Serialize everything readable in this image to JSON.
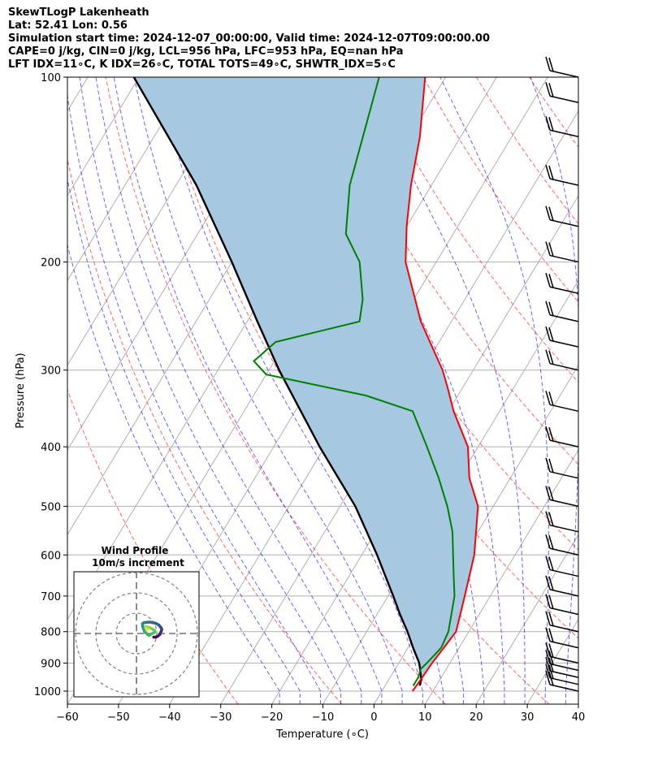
{
  "header": {
    "line1": "SkewTLogP Lakenheath",
    "line2": "Lat: 52.41   Lon: 0.56",
    "line3": "Simulation start time: 2024-12-07_00:00:00, Valid time: 2024-12-07T09:00:00.00",
    "line4": "CAPE=0 j/kg, CIN=0 j/kg, LCL=956 hPa, LFC=953 hPa, EQ=nan hPa",
    "line5": "LFT IDX=11∘C, K IDX=26∘C, TOTAL TOTS=49∘C, SHWTR_IDX=5∘C"
  },
  "chart_data": {
    "type": "skewt",
    "xlabel": "Temperature (∘C)",
    "ylabel": "Pressure (hPa)",
    "xlim": [
      -60,
      40
    ],
    "ylim": [
      1050,
      100
    ],
    "x_ticks": [
      -60,
      -50,
      -40,
      -30,
      -20,
      -10,
      0,
      10,
      20,
      30,
      40
    ],
    "x_tick_labels": [
      "−60",
      "−50",
      "−40",
      "−30",
      "−20",
      "−10",
      "0",
      "10",
      "20",
      "30",
      "40"
    ],
    "y_ticks": [
      1000,
      900,
      800,
      700,
      600,
      500,
      400,
      300,
      200,
      100
    ],
    "temperature": {
      "color": "#ff0000",
      "points": [
        [
          1000,
          6
        ],
        [
          950,
          6.3
        ],
        [
          900,
          6.5
        ],
        [
          850,
          7
        ],
        [
          800,
          7.5
        ],
        [
          700,
          5
        ],
        [
          600,
          2
        ],
        [
          500,
          -3
        ],
        [
          450,
          -8
        ],
        [
          400,
          -12
        ],
        [
          350,
          -19
        ],
        [
          320,
          -23
        ],
        [
          300,
          -26
        ],
        [
          250,
          -36
        ],
        [
          200,
          -46
        ],
        [
          175,
          -50
        ],
        [
          150,
          -54
        ],
        [
          125,
          -58
        ],
        [
          100,
          -64
        ]
      ]
    },
    "dewpoint": {
      "color": "#008000",
      "points": [
        [
          980,
          5.5
        ],
        [
          950,
          5.5
        ],
        [
          920,
          5
        ],
        [
          900,
          5.5
        ],
        [
          850,
          6.5
        ],
        [
          800,
          6
        ],
        [
          700,
          3
        ],
        [
          650,
          0.5
        ],
        [
          550,
          -5
        ],
        [
          500,
          -9
        ],
        [
          450,
          -14
        ],
        [
          400,
          -20
        ],
        [
          350,
          -27
        ],
        [
          330,
          -38
        ],
        [
          305,
          -60
        ],
        [
          290,
          -64
        ],
        [
          270,
          -62
        ],
        [
          250,
          -48
        ],
        [
          230,
          -50
        ],
        [
          200,
          -55
        ],
        [
          180,
          -61
        ],
        [
          150,
          -66
        ],
        [
          100,
          -73
        ]
      ]
    },
    "parcel": {
      "color": "#000000",
      "points": [
        [
          980,
          6.8
        ],
        [
          956,
          6.3
        ],
        [
          900,
          4
        ],
        [
          850,
          1
        ],
        [
          800,
          -2
        ],
        [
          750,
          -5.5
        ],
        [
          700,
          -9
        ],
        [
          600,
          -17
        ],
        [
          500,
          -27
        ],
        [
          400,
          -41
        ],
        [
          300,
          -58
        ],
        [
          250,
          -68
        ],
        [
          200,
          -80
        ],
        [
          150,
          -96
        ],
        [
          100,
          -121
        ]
      ]
    },
    "cape_shading_color": "#a6c8e0",
    "wind_barbs_pressures": [
      1000,
      975,
      950,
      925,
      900,
      850,
      800,
      750,
      700,
      650,
      600,
      550,
      500,
      450,
      400,
      350,
      300,
      275,
      250,
      225,
      200,
      175,
      150,
      125,
      110,
      100
    ],
    "inset": {
      "title_line1": "Wind Profile",
      "title_line2": "10m/s increment",
      "rings_ms": [
        10,
        20,
        30
      ],
      "hodograph": [
        [
          5.1,
          1.5
        ],
        [
          5.4,
          2.4
        ],
        [
          5.0,
          3.2
        ],
        [
          4.6,
          3.5
        ],
        [
          5.6,
          3.2
        ],
        [
          6.6,
          2.9
        ],
        [
          7.8,
          2.2
        ],
        [
          9.0,
          1.4
        ],
        [
          8.8,
          0.5
        ],
        [
          7.2,
          -0.3
        ],
        [
          6.2,
          -1.0
        ],
        [
          4.0,
          0.8
        ],
        [
          3.5,
          2.2
        ],
        [
          3.0,
          3.5
        ],
        [
          3.0,
          4.8
        ],
        [
          3.6,
          5.3
        ],
        [
          5.0,
          5.5
        ],
        [
          6.5,
          5.6
        ],
        [
          8.0,
          5.4
        ],
        [
          9.5,
          5.0
        ],
        [
          11.0,
          4.2
        ],
        [
          12.0,
          3.0
        ],
        [
          12.5,
          2.0
        ],
        [
          12.0,
          0.7
        ],
        [
          11.5,
          -0.5
        ],
        [
          10.5,
          -1.3
        ],
        [
          9.5,
          -1.8
        ],
        [
          8.5,
          -1.8
        ]
      ]
    }
  }
}
